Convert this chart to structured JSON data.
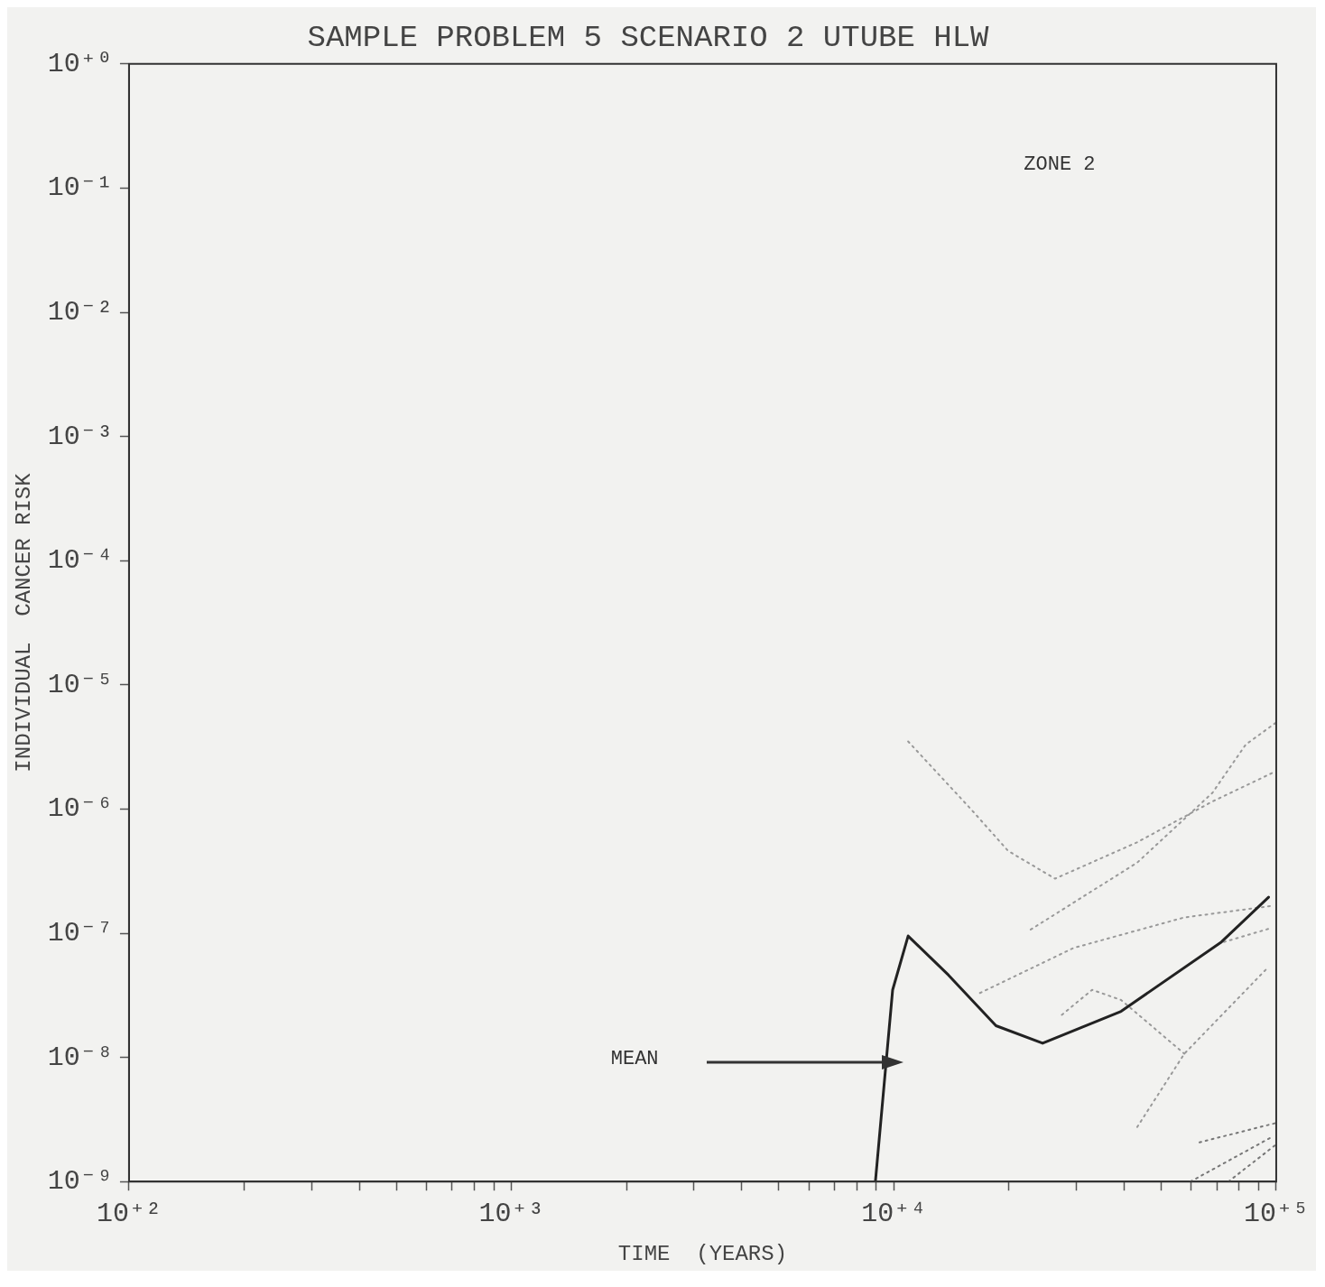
{
  "chart_data": {
    "type": "line",
    "title": "SAMPLE PROBLEM 5 SCENARIO 2 UTUBE HLW",
    "xlabel": "TIME  (YEARS)",
    "ylabel": "INDIVIDUAL  CANCER RISK",
    "log": "xy",
    "grid": false,
    "legend": false,
    "marker": "none",
    "xlim": [
      100,
      100000
    ],
    "ylim": [
      1e-09,
      1
    ],
    "xticks": [
      {
        "value": 100,
        "label": "10⁺²"
      },
      {
        "value": 200,
        "label": null
      },
      {
        "value": 300,
        "label": null
      },
      {
        "value": 400,
        "label": null
      },
      {
        "value": 500,
        "label": null
      },
      {
        "value": 600,
        "label": null
      },
      {
        "value": 700,
        "label": null
      },
      {
        "value": 800,
        "label": null
      },
      {
        "value": 900,
        "label": null
      },
      {
        "value": 1000,
        "label": "10⁺³"
      },
      {
        "value": 2000,
        "label": null
      },
      {
        "value": 3000,
        "label": null
      },
      {
        "value": 4000,
        "label": null
      },
      {
        "value": 5000,
        "label": null
      },
      {
        "value": 6000,
        "label": null
      },
      {
        "value": 7000,
        "label": null
      },
      {
        "value": 8000,
        "label": null
      },
      {
        "value": 9000,
        "label": null
      },
      {
        "value": 10000,
        "label": "10⁺⁴"
      },
      {
        "value": 20000,
        "label": null
      },
      {
        "value": 30000,
        "label": null
      },
      {
        "value": 40000,
        "label": null
      },
      {
        "value": 50000,
        "label": null
      },
      {
        "value": 60000,
        "label": null
      },
      {
        "value": 70000,
        "label": null
      },
      {
        "value": 80000,
        "label": null
      },
      {
        "value": 90000,
        "label": null
      },
      {
        "value": 100000,
        "label": "10⁺⁵"
      }
    ],
    "yticks": [
      {
        "value": 1e-09,
        "label": "10⁻⁹"
      },
      {
        "value": 1e-08,
        "label": "10⁻⁸"
      },
      {
        "value": 1e-07,
        "label": "10⁻⁷"
      },
      {
        "value": 1e-06,
        "label": "10⁻⁶"
      },
      {
        "value": 1e-05,
        "label": "10⁻⁵"
      },
      {
        "value": 0.0001,
        "label": "10⁻⁴"
      },
      {
        "value": 0.001,
        "label": "10⁻³"
      },
      {
        "value": 0.01,
        "label": "10⁻²"
      },
      {
        "value": 0.1,
        "label": "10⁻¹"
      },
      {
        "value": 1,
        "label": "10⁺⁰"
      }
    ],
    "annotations": [
      "ZONE 2",
      "MEAN"
    ],
    "series": [
      {
        "color": "#222222",
        "line_style": "solid",
        "x": [
          8950,
          9930,
          10900,
          13900,
          18500,
          24500,
          39300,
          71900,
          95500
        ],
        "values": [
          1e-09,
          3.5e-08,
          9.5e-08,
          4.6e-08,
          1.8e-08,
          1.3e-08,
          2.35e-08,
          8.5e-08,
          1.95e-07
        ]
      },
      {
        "color": "#999999",
        "line_style": "dotted",
        "x": [
          10900,
          15900,
          19900,
          26400,
          43300,
          68100,
          99300
        ],
        "values": [
          3.5e-06,
          1e-06,
          4.6e-07,
          2.75e-07,
          5.4e-07,
          1.15e-06,
          2e-06
        ]
      },
      {
        "color": "#999999",
        "line_style": "dotted",
        "x": [
          22800,
          43300,
          68100,
          83200,
          99300
        ],
        "values": [
          1.07e-07,
          3.7e-07,
          1.35e-06,
          3.3e-06,
          4.9e-06
        ]
      },
      {
        "color": "#999999",
        "line_style": "dotted",
        "x": [
          16800,
          29500,
          57500,
          97300
        ],
        "values": [
          3.3e-08,
          7.6e-08,
          1.34e-07,
          1.66e-07
        ]
      },
      {
        "color": "#999999",
        "line_style": "dotted",
        "x": [
          73000,
          97000
        ],
        "values": [
          8.5e-08,
          1.1e-07
        ]
      },
      {
        "color": "#999999",
        "line_style": "dotted",
        "x": [
          27500,
          33000,
          39300,
          57500
        ],
        "values": [
          2.2e-08,
          3.5e-08,
          2.9e-08,
          1.07e-08
        ]
      },
      {
        "color": "#999999",
        "line_style": "dotted",
        "x": [
          43300,
          57500,
          94000
        ],
        "values": [
          2.75e-09,
          1.07e-08,
          5.1e-08
        ]
      },
      {
        "color": "#777777",
        "line_style": "dotted",
        "x": [
          63000,
          99300
        ],
        "values": [
          2.07e-09,
          2.95e-09
        ]
      },
      {
        "color": "#777777",
        "line_style": "dotted",
        "x": [
          59700,
          97700
        ],
        "values": [
          1e-09,
          2.3e-09
        ]
      },
      {
        "color": "#777777",
        "line_style": "dotted",
        "x": [
          75000,
          99300
        ],
        "values": [
          1e-09,
          1.96e-09
        ]
      }
    ]
  }
}
